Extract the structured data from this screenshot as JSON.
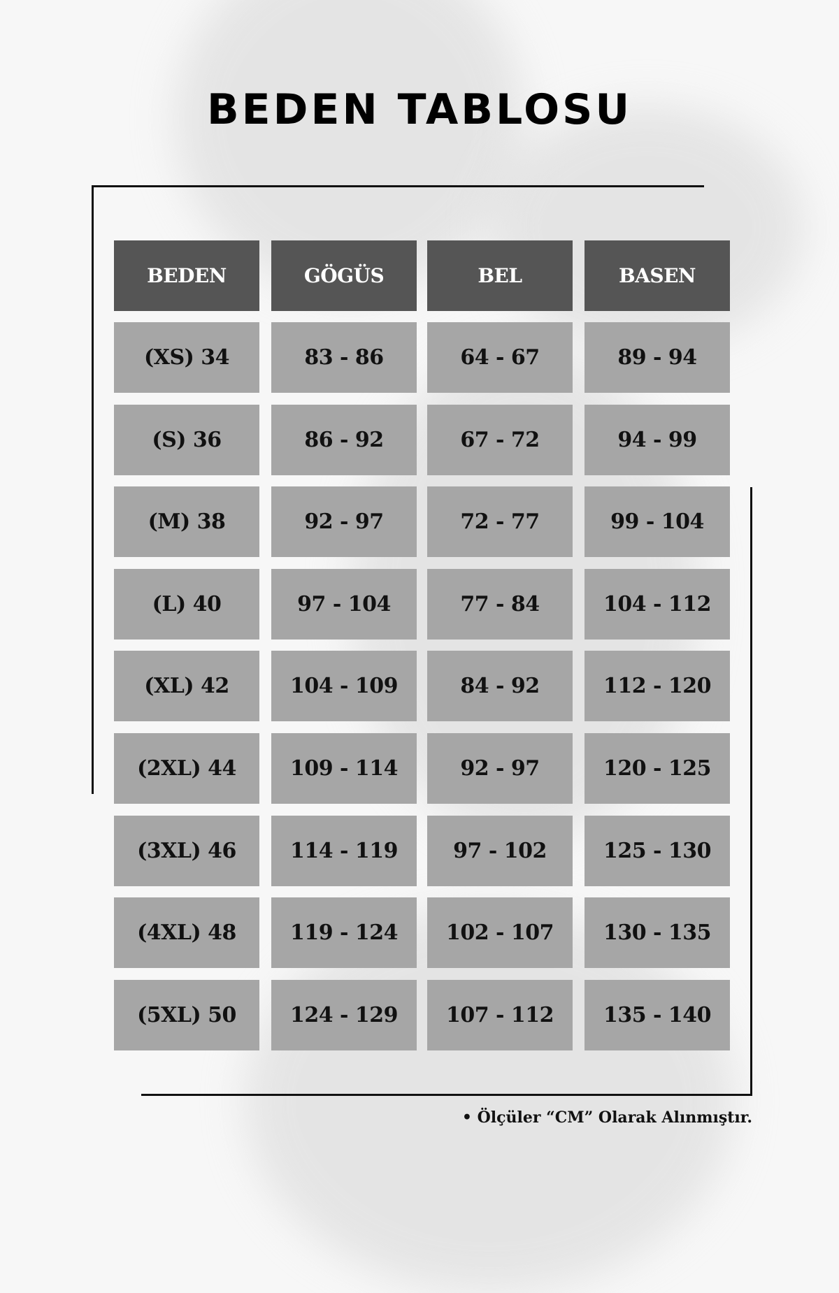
{
  "title": "BEDEN TABLOSU",
  "table": {
    "headers": [
      "BEDEN",
      "GÖGÜS",
      "BEL",
      "BASEN"
    ],
    "rows": [
      [
        "(XS) 34",
        "83 - 86",
        "64 - 67",
        "89 - 94"
      ],
      [
        "(S) 36",
        "86 - 92",
        "67 - 72",
        "94 - 99"
      ],
      [
        "(M) 38",
        "92 - 97",
        "72 - 77",
        "99 - 104"
      ],
      [
        "(L) 40",
        "97 - 104",
        "77 - 84",
        "104 - 112"
      ],
      [
        "(XL) 42",
        "104 - 109",
        "84 - 92",
        "112 - 120"
      ],
      [
        "(2XL) 44",
        "109 - 114",
        "92 - 97",
        "120 - 125"
      ],
      [
        "(3XL) 46",
        "114 - 119",
        "97 - 102",
        "125 - 130"
      ],
      [
        "(4XL) 48",
        "119 - 124",
        "102 - 107",
        "130 - 135"
      ],
      [
        "(5XL) 50",
        "124 - 129",
        "107 - 112",
        "135 - 140"
      ]
    ]
  },
  "note": "• Ölçüler “CM” Olarak Alınmıştır.",
  "colors": {
    "header_bg": "#555555",
    "cell_bg": "#a6a6a6",
    "text": "#111111"
  }
}
